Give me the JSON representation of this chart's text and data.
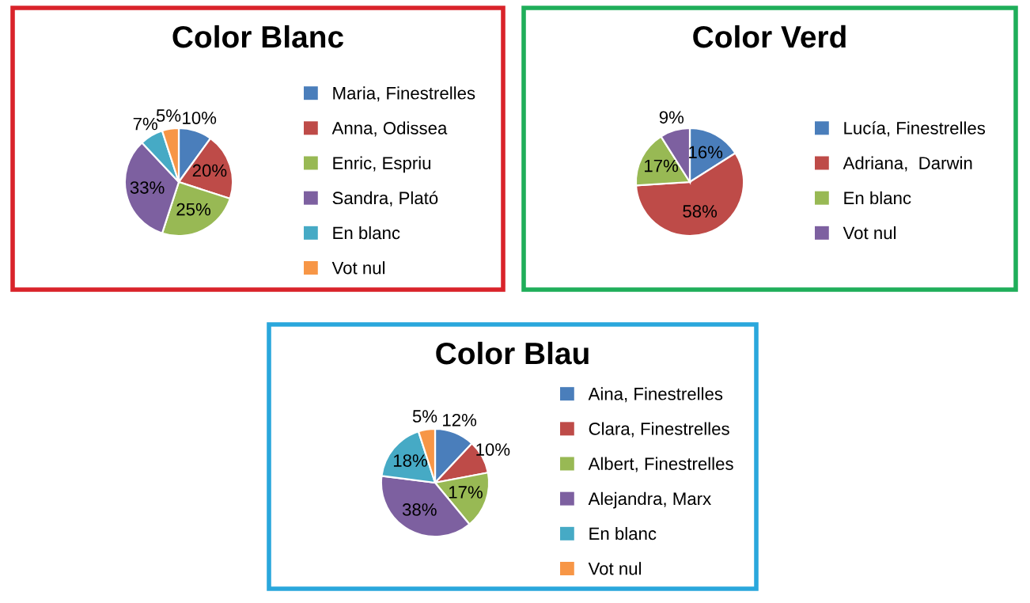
{
  "chart_data": [
    {
      "type": "pie",
      "title": "Color Blanc",
      "categories": [
        "Maria, Finestrelles",
        "Anna, Odissea",
        "Enric, Espriu",
        "Sandra, Plató",
        "En blanc",
        "Vot nul"
      ],
      "values": [
        10,
        20,
        25,
        33,
        7,
        5
      ],
      "colors": [
        "#4a7ebb",
        "#be4b48",
        "#98b954",
        "#7d60a0",
        "#46aac5",
        "#f79646"
      ],
      "value_labels": [
        "10%",
        "20%",
        "25%",
        "33%",
        "7%",
        "5%"
      ],
      "legend": "right"
    },
    {
      "type": "pie",
      "title": "Color Verd",
      "categories": [
        "Lucía, Finestrelles",
        "Adriana,  Darwin",
        "En blanc",
        "Vot nul"
      ],
      "values": [
        16,
        58,
        17,
        9
      ],
      "colors": [
        "#4a7ebb",
        "#be4b48",
        "#98b954",
        "#7d60a0"
      ],
      "value_labels": [
        "16%",
        "58%",
        "17%",
        "9%"
      ],
      "legend": "right"
    },
    {
      "type": "pie",
      "title": "Color Blau",
      "categories": [
        "Aina, Finestrelles",
        "Clara, Finestrelles",
        "Albert, Finestrelles",
        "Alejandra, Marx",
        "En blanc",
        "Vot nul"
      ],
      "values": [
        12,
        10,
        17,
        38,
        18,
        5
      ],
      "colors": [
        "#4a7ebb",
        "#be4b48",
        "#98b954",
        "#7d60a0",
        "#46aac5",
        "#f79646"
      ],
      "value_labels": [
        "12%",
        "10%",
        "17%",
        "38%",
        "18%",
        "5%"
      ],
      "legend": "right"
    }
  ]
}
